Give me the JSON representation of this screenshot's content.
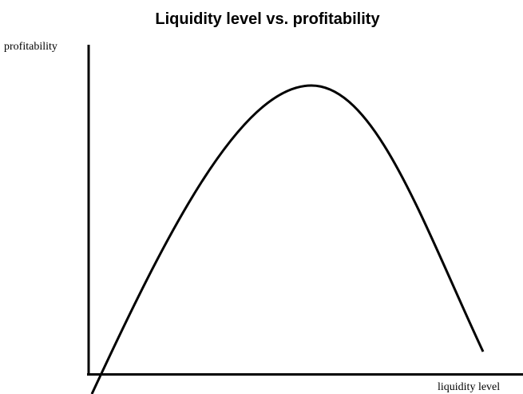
{
  "title": "Liquidity level vs. profitability",
  "y_axis_label": "profitability",
  "x_axis_label": "liquidity level"
}
